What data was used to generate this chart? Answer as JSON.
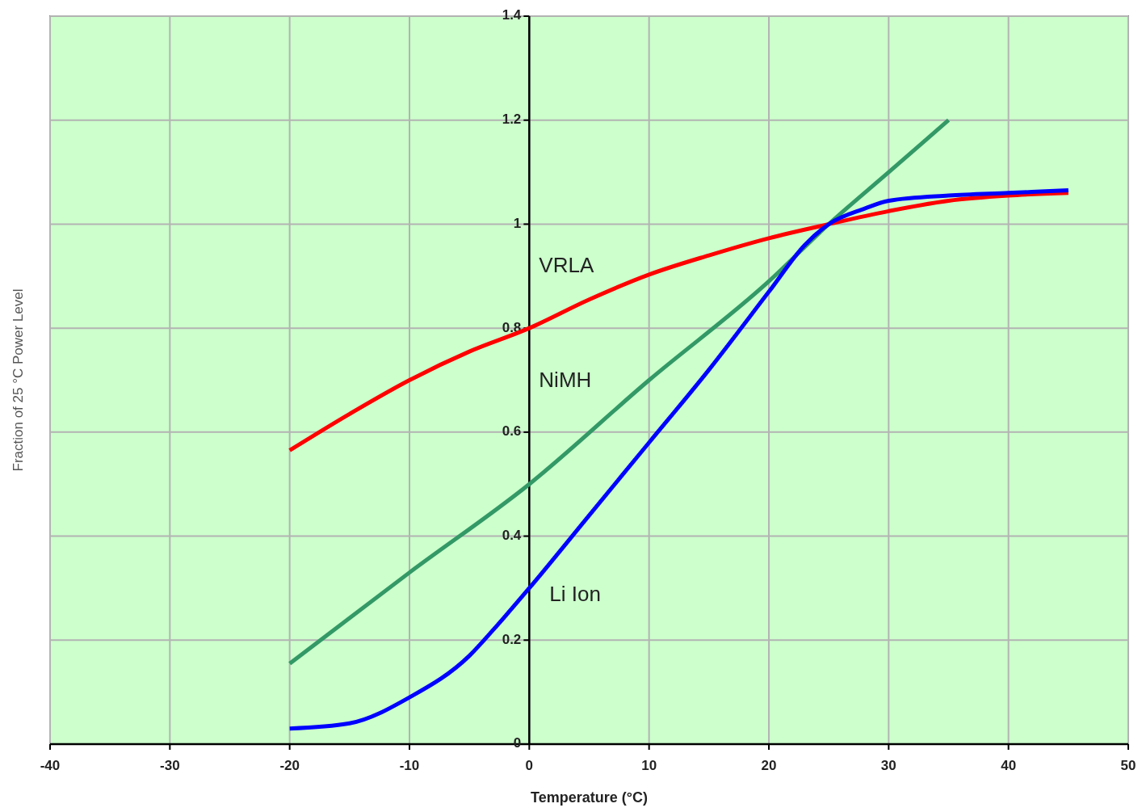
{
  "chart_data": {
    "type": "line",
    "xlabel": "Temperature (°C)",
    "ylabel": "Fraction of 25 °C Power Level",
    "xlim": [
      -40,
      50
    ],
    "xticks": [
      -40,
      -30,
      -20,
      -10,
      0,
      10,
      20,
      30,
      40,
      50
    ],
    "ylim": [
      0,
      1.4
    ],
    "yticks": [
      0,
      0.2,
      0.4,
      0.6,
      0.8,
      1,
      1.2,
      1.4
    ],
    "grid": true,
    "legend": false,
    "marker": "none",
    "line_style": "solid",
    "series": [
      {
        "name": "VRLA",
        "color": "#ff0000",
        "x": [
          -20,
          -15,
          -10,
          -5,
          0,
          5,
          10,
          15,
          20,
          25,
          30,
          35,
          40,
          45
        ],
        "values": [
          0.565,
          0.635,
          0.7,
          0.755,
          0.8,
          0.855,
          0.903,
          0.94,
          0.973,
          1.0,
          1.025,
          1.045,
          1.055,
          1.06
        ]
      },
      {
        "name": "NiMH",
        "color": "#339966",
        "x": [
          -20,
          -10,
          0,
          10,
          20,
          25,
          30,
          35
        ],
        "values": [
          0.155,
          0.33,
          0.5,
          0.7,
          0.89,
          1.0,
          1.1,
          1.2
        ]
      },
      {
        "name": "Li Ion",
        "color": "#0000ff",
        "x": [
          -20,
          -15,
          -10,
          -5,
          -3,
          0,
          5,
          10,
          15,
          20,
          23,
          25,
          28,
          30,
          35,
          40,
          45
        ],
        "values": [
          0.03,
          0.04,
          0.09,
          0.17,
          0.22,
          0.3,
          0.44,
          0.58,
          0.72,
          0.87,
          0.96,
          1.0,
          1.03,
          1.045,
          1.055,
          1.06,
          1.065
        ]
      }
    ]
  }
}
